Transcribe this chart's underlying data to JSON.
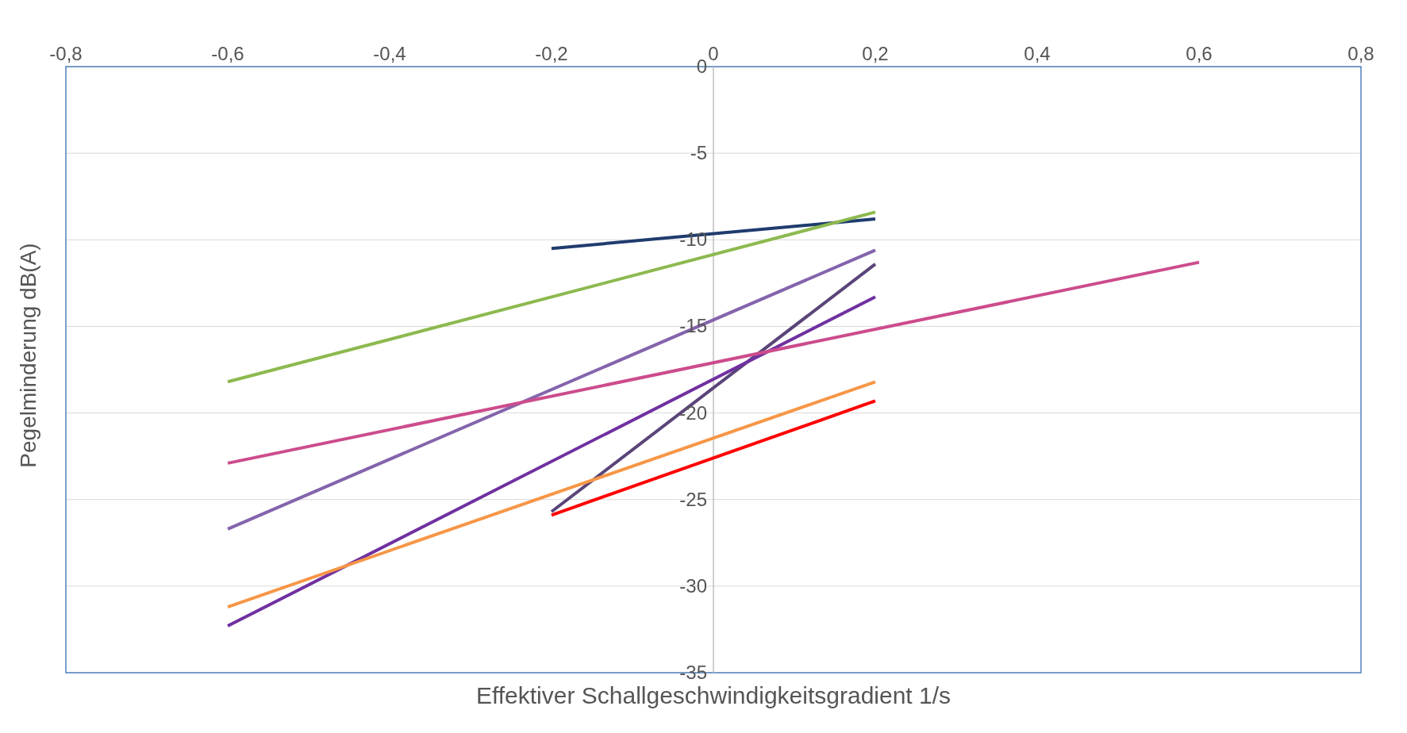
{
  "chart_data": {
    "type": "line",
    "xlabel": "Effektiver Schallgeschwindigkeitsgradient 1/s",
    "ylabel": "Pegelminderung dB(A)",
    "xlim": [
      -0.8,
      0.8
    ],
    "xticks": [
      {
        "value": -0.8,
        "label": "-0,8"
      },
      {
        "value": -0.6,
        "label": "-0,6"
      },
      {
        "value": -0.4,
        "label": "-0,4"
      },
      {
        "value": -0.2,
        "label": "-0,2"
      },
      0,
      {
        "value": 0.2,
        "label": "0,2"
      },
      {
        "value": 0.4,
        "label": "0,4"
      },
      {
        "value": 0.6,
        "label": "0,6"
      },
      {
        "value": 0.8,
        "label": "0,8"
      }
    ],
    "ylim": [
      -35,
      0
    ],
    "yticks": [
      -35,
      -30,
      -25,
      -20,
      -15,
      -10,
      -5,
      0
    ],
    "grid": "y",
    "marker": "none",
    "line_style": "solid",
    "series": [
      {
        "color": "#1f3c6e",
        "x": [
          -0.2,
          0.2
        ],
        "values": [
          -10.5,
          -8.8
        ]
      },
      {
        "color": "#8db94f",
        "x": [
          -0.6,
          0.2
        ],
        "values": [
          -18.2,
          -8.4
        ]
      },
      {
        "color": "#8464ac",
        "x": [
          -0.6,
          0.2
        ],
        "values": [
          -26.7,
          -10.6
        ]
      },
      {
        "color": "#5a4478",
        "x": [
          -0.2,
          0.2
        ],
        "values": [
          -25.7,
          -11.4
        ]
      },
      {
        "color": "#7030a0",
        "x": [
          -0.6,
          0.2
        ],
        "values": [
          -32.3,
          -13.3
        ]
      },
      {
        "color": "#cc4c8c",
        "x": [
          -0.6,
          0.6
        ],
        "values": [
          -22.9,
          -11.3
        ]
      },
      {
        "color": "#f79646",
        "x": [
          -0.6,
          0.2
        ],
        "values": [
          -31.2,
          -18.2
        ]
      },
      {
        "color": "#ff0000",
        "x": [
          -0.2,
          0.2
        ],
        "values": [
          -25.9,
          -19.3
        ]
      }
    ]
  }
}
